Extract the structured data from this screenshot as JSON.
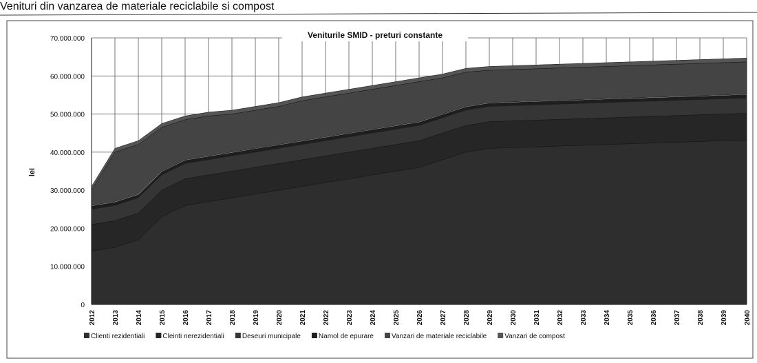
{
  "page_title": "Venituri din vanzarea de materiale reciclabile si compost",
  "chart_data": {
    "type": "area",
    "stacked": true,
    "title": "Veniturile SMID - preturi constante",
    "y_label": "lei",
    "categories": [
      "2012",
      "2013",
      "2014",
      "2015",
      "2016",
      "2017",
      "2018",
      "2019",
      "2020",
      "2021",
      "2022",
      "2023",
      "2024",
      "2025",
      "2026",
      "2027",
      "2028",
      "2029",
      "2030",
      "2031",
      "2032",
      "2033",
      "2034",
      "2035",
      "2036",
      "2037",
      "2038",
      "2039",
      "2040"
    ],
    "series": [
      {
        "name": "Clienti rezidentiali",
        "color": "#2e2e2e",
        "values": [
          14000000,
          15000000,
          17000000,
          23000000,
          26000000,
          27000000,
          28000000,
          29000000,
          30000000,
          31000000,
          32000000,
          33000000,
          34000000,
          35000000,
          36000000,
          38000000,
          40000000,
          41000000,
          41200000,
          41400000,
          41600000,
          41800000,
          42000000,
          42200000,
          42400000,
          42600000,
          42800000,
          43000000,
          43200000
        ]
      },
      {
        "name": "Cleinti nerezidentiali",
        "color": "#262626",
        "values": [
          7000000,
          7000000,
          7000000,
          7000000,
          7000000,
          7000000,
          7000000,
          7000000,
          7000000,
          7000000,
          7000000,
          7000000,
          7000000,
          7000000,
          7000000,
          7000000,
          7000000,
          7000000,
          7000000,
          7000000,
          7000000,
          7000000,
          7000000,
          7000000,
          7000000,
          7000000,
          7000000,
          7000000,
          7000000
        ]
      },
      {
        "name": "Deseuri municipale",
        "color": "#353535",
        "values": [
          4000000,
          4000000,
          4000000,
          4000000,
          4000000,
          4000000,
          4000000,
          4000000,
          4000000,
          4000000,
          4000000,
          4000000,
          4000000,
          4000000,
          4000000,
          4000000,
          4000000,
          4000000,
          4000000,
          4000000,
          4000000,
          4000000,
          4000000,
          4000000,
          4000000,
          4000000,
          4000000,
          4000000,
          4000000
        ]
      },
      {
        "name": "Namol de epurare",
        "color": "#1e1e1e",
        "values": [
          1000000,
          1000000,
          1000000,
          1000000,
          1000000,
          1000000,
          1000000,
          1000000,
          1000000,
          1000000,
          1000000,
          1000000,
          1000000,
          1000000,
          1000000,
          1000000,
          1000000,
          1000000,
          1000000,
          1000000,
          1000000,
          1000000,
          1000000,
          1000000,
          1000000,
          1000000,
          1000000,
          1000000,
          1000000
        ]
      },
      {
        "name": "Vanzari de materiale reciclabile",
        "color": "#444444",
        "values": [
          4000000,
          13000000,
          13000000,
          11500000,
          10500000,
          10500000,
          10000000,
          10000000,
          10000000,
          10500000,
          10500000,
          10500000,
          10500000,
          10500000,
          10500000,
          9500000,
          9000000,
          8500000,
          8500000,
          8500000,
          8500000,
          8500000,
          8500000,
          8500000,
          8500000,
          8500000,
          8500000,
          8500000,
          8500000
        ]
      },
      {
        "name": "Vanzari de compost",
        "color": "#555555",
        "values": [
          1000000,
          1000000,
          1000000,
          1000000,
          1000000,
          1000000,
          1000000,
          1000000,
          1000000,
          1000000,
          1000000,
          1000000,
          1000000,
          1000000,
          1000000,
          1000000,
          1000000,
          1000000,
          1000000,
          1000000,
          1000000,
          1000000,
          1000000,
          1000000,
          1000000,
          1000000,
          1000000,
          1000000,
          1000000
        ]
      }
    ],
    "ylim": [
      0,
      70000000
    ],
    "yticks": [
      0,
      {
        "value": 10000000,
        "label": "10.000.000"
      },
      {
        "value": 20000000,
        "label": "20.000.000"
      },
      {
        "value": 30000000,
        "label": "30.000.000"
      },
      {
        "value": 40000000,
        "label": "40.000.000"
      },
      {
        "value": 50000000,
        "label": "50.000.000"
      },
      {
        "value": 60000000,
        "label": "60.000.000"
      },
      {
        "value": 70000000,
        "label": "70.000.000"
      }
    ],
    "grid": true,
    "legend": "bottom"
  }
}
